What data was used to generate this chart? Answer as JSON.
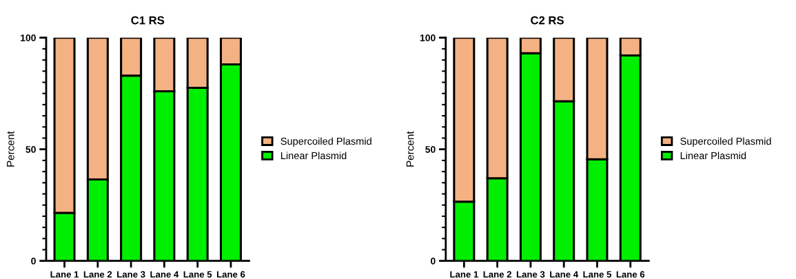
{
  "chart_data": [
    {
      "type": "bar",
      "title": "C1 RS",
      "ylabel": "Percent",
      "stacked": true,
      "legend": "right",
      "grid": false,
      "categories": [
        "Lane 1",
        "Lane 2",
        "Lane 3",
        "Lane 4",
        "Lane 5",
        "Lane 6"
      ],
      "series": [
        {
          "name": "Linear Plasmid",
          "color": "#00ee00",
          "values": [
            21.5,
            36.5,
            83,
            76,
            77.5,
            88
          ]
        },
        {
          "name": "Supercoiled Plasmid",
          "color": "#f4b183",
          "values": [
            78.5,
            63.5,
            17,
            24,
            22.5,
            12
          ]
        }
      ],
      "ylim": [
        0,
        100
      ],
      "yticks": [
        0,
        {
          "value": 5,
          "label": null
        },
        {
          "value": 10,
          "label": null
        },
        {
          "value": 15,
          "label": null
        },
        {
          "value": 20,
          "label": null
        },
        {
          "value": 25,
          "label": null
        },
        {
          "value": 30,
          "label": null
        },
        {
          "value": 35,
          "label": null
        },
        {
          "value": 40,
          "label": null
        },
        {
          "value": 45,
          "label": null
        },
        50,
        {
          "value": 55,
          "label": null
        },
        {
          "value": 60,
          "label": null
        },
        {
          "value": 65,
          "label": null
        },
        {
          "value": 70,
          "label": null
        },
        {
          "value": 75,
          "label": null
        },
        {
          "value": 80,
          "label": null
        },
        {
          "value": 85,
          "label": null
        },
        {
          "value": 90,
          "label": null
        },
        {
          "value": 95,
          "label": null
        },
        100
      ]
    },
    {
      "type": "bar",
      "title": "C2 RS",
      "ylabel": "Percent",
      "stacked": true,
      "legend": "right",
      "grid": false,
      "categories": [
        "Lane 1",
        "Lane 2",
        "Lane 3",
        "Lane 4",
        "Lane 5",
        "Lane 6"
      ],
      "series": [
        {
          "name": "Linear Plasmid",
          "color": "#00ee00",
          "values": [
            26.5,
            37,
            93,
            71.5,
            45.5,
            92
          ]
        },
        {
          "name": "Supercoiled Plasmid",
          "color": "#f4b183",
          "values": [
            73.5,
            63,
            7,
            28.5,
            54.5,
            8
          ]
        }
      ],
      "ylim": [
        0,
        100
      ],
      "yticks": [
        0,
        {
          "value": 5,
          "label": null
        },
        {
          "value": 10,
          "label": null
        },
        {
          "value": 15,
          "label": null
        },
        {
          "value": 20,
          "label": null
        },
        {
          "value": 25,
          "label": null
        },
        {
          "value": 30,
          "label": null
        },
        {
          "value": 35,
          "label": null
        },
        {
          "value": 40,
          "label": null
        },
        {
          "value": 45,
          "label": null
        },
        50,
        {
          "value": 55,
          "label": null
        },
        {
          "value": 60,
          "label": null
        },
        {
          "value": 65,
          "label": null
        },
        {
          "value": 70,
          "label": null
        },
        {
          "value": 75,
          "label": null
        },
        {
          "value": 80,
          "label": null
        },
        {
          "value": 85,
          "label": null
        },
        {
          "value": 90,
          "label": null
        },
        {
          "value": 95,
          "label": null
        },
        100
      ]
    }
  ]
}
